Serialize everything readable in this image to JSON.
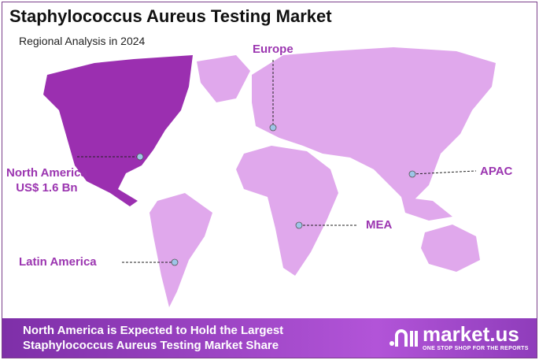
{
  "header": {
    "title": "Staphylococcus Aureus Testing Market",
    "subtitle": "Regional Analysis in 2024"
  },
  "colors": {
    "highlight": "#9b2fb0",
    "land": "#e0a8ec",
    "label": "#9b35b0",
    "banner": "#9a45c8",
    "marker": "#9ec5e8"
  },
  "regions": [
    {
      "name": "North America",
      "value": "US$ 1.6 Bn",
      "highlighted": true
    },
    {
      "name": "Europe"
    },
    {
      "name": "APAC"
    },
    {
      "name": "MEA"
    },
    {
      "name": "Latin America"
    }
  ],
  "banner": {
    "line1": "North America is Expected to Hold the Largest",
    "line2": "Staphylococcus Aureus Testing Market Share"
  },
  "logo": {
    "name": "market.us",
    "tagline": "ONE STOP SHOP FOR THE REPORTS",
    "icon": "market-us-logo-icon"
  }
}
